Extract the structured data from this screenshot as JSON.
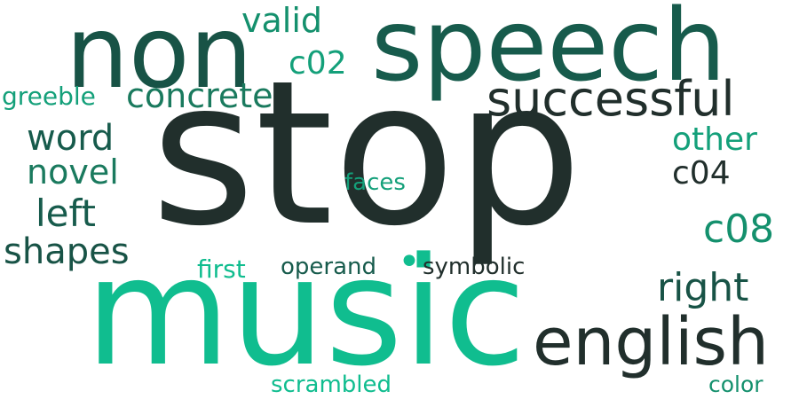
{
  "palette": {
    "dark": "#212f2c",
    "deep_green": "#175b4c",
    "green": "#1a7a5e",
    "teal": "#14a07a",
    "bright": "#10bd8f"
  },
  "words": [
    {
      "text": "stop",
      "color": "#212f2c"
    },
    {
      "text": "music",
      "color": "#10bd8f"
    },
    {
      "text": "speech",
      "color": "#175b4c"
    },
    {
      "text": "non",
      "color": "#185346"
    },
    {
      "text": "english",
      "color": "#212f2c"
    },
    {
      "text": "successful",
      "color": "#212f2c"
    },
    {
      "text": "concrete",
      "color": "#1a7a5e"
    },
    {
      "text": "valid",
      "color": "#14906d"
    },
    {
      "text": "c02",
      "color": "#14a07a"
    },
    {
      "text": "greeble",
      "color": "#14a07a"
    },
    {
      "text": "word",
      "color": "#175b4c"
    },
    {
      "text": "novel",
      "color": "#1a7a5e"
    },
    {
      "text": "left",
      "color": "#175b4c"
    },
    {
      "text": "shapes",
      "color": "#185346"
    },
    {
      "text": "other",
      "color": "#14a07a"
    },
    {
      "text": "c04",
      "color": "#212f2c"
    },
    {
      "text": "faces",
      "color": "#14a07a"
    },
    {
      "text": "c08",
      "color": "#14906d"
    },
    {
      "text": "right",
      "color": "#185346"
    },
    {
      "text": "first",
      "color": "#10bd8f"
    },
    {
      "text": "operand",
      "color": "#175b4c"
    },
    {
      "text": "symbolic",
      "color": "#212f2c"
    },
    {
      "text": "scrambled",
      "color": "#10bd8f"
    },
    {
      "text": "color",
      "color": "#14906d"
    },
    {
      "text": "•",
      "color": "#10bd8f"
    }
  ]
}
